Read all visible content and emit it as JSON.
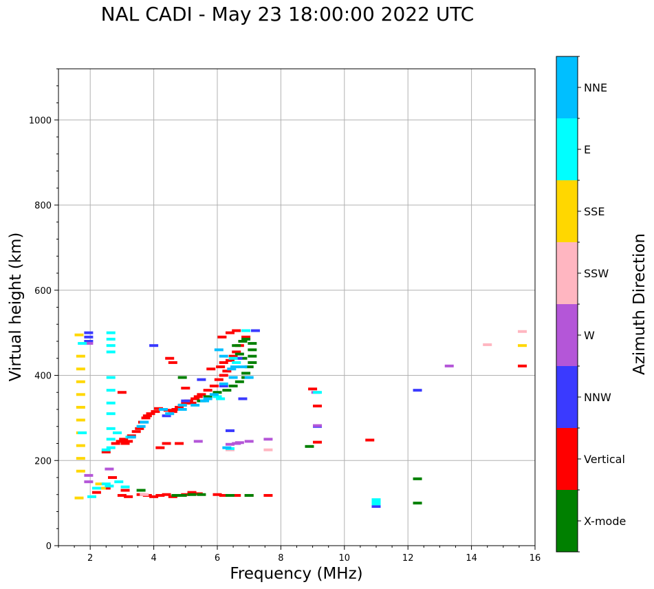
{
  "title": "NAL CADI - May 23 18:00:00 2022 UTC",
  "chart_data": {
    "type": "scatter",
    "xlabel": "Frequency (MHz)",
    "ylabel": "Virtual height (km)",
    "xlim": [
      1,
      16
    ],
    "ylim": [
      0,
      1120
    ],
    "xticks": [
      2,
      4,
      6,
      8,
      10,
      12,
      14,
      16
    ],
    "yticks": [
      0,
      200,
      400,
      600,
      800,
      1000
    ],
    "grid": true,
    "colorbar": {
      "label": "Azimuth Direction",
      "categories": [
        {
          "name": "X-mode",
          "color": "#008000"
        },
        {
          "name": "Vertical",
          "color": "#ff0000"
        },
        {
          "name": "NNW",
          "color": "#3a3aff"
        },
        {
          "name": "W",
          "color": "#b456d8"
        },
        {
          "name": "SSW",
          "color": "#ffb6c1"
        },
        {
          "name": "SSE",
          "color": "#ffd700"
        },
        {
          "name": "E",
          "color": "#00ffff"
        },
        {
          "name": "NNE",
          "color": "#00bfff"
        }
      ]
    },
    "series": [
      {
        "name": "Vertical",
        "points": [
          [
            2.2,
            125
          ],
          [
            2.5,
            220
          ],
          [
            2.8,
            240
          ],
          [
            2.95,
            245
          ],
          [
            3.05,
            250
          ],
          [
            3.1,
            240
          ],
          [
            3.2,
            245
          ],
          [
            3.3,
            258
          ],
          [
            3.45,
            268
          ],
          [
            3.55,
            275
          ],
          [
            3.65,
            290
          ],
          [
            3.75,
            300
          ],
          [
            3.8,
            305
          ],
          [
            3.9,
            310
          ],
          [
            4.05,
            315
          ],
          [
            4.15,
            322
          ],
          [
            4.3,
            320
          ],
          [
            4.45,
            318
          ],
          [
            4.6,
            315
          ],
          [
            4.7,
            320
          ],
          [
            4.8,
            325
          ],
          [
            4.9,
            330
          ],
          [
            5.0,
            335
          ],
          [
            5.1,
            340
          ],
          [
            5.2,
            335
          ],
          [
            5.3,
            345
          ],
          [
            5.4,
            350
          ],
          [
            5.5,
            355
          ],
          [
            5.7,
            365
          ],
          [
            5.9,
            375
          ],
          [
            6.05,
            390
          ],
          [
            6.2,
            400
          ],
          [
            6.3,
            410
          ],
          [
            6.4,
            435
          ],
          [
            6.5,
            445
          ],
          [
            6.6,
            455
          ],
          [
            6.7,
            470
          ],
          [
            6.8,
            480
          ],
          [
            6.9,
            490
          ],
          [
            6.15,
            490
          ],
          [
            6.4,
            500
          ],
          [
            6.6,
            505
          ],
          [
            6.2,
            430
          ],
          [
            6.1,
            420
          ],
          [
            5.8,
            415
          ],
          [
            4.6,
            430
          ],
          [
            4.5,
            440
          ],
          [
            5.0,
            370
          ],
          [
            3.0,
            360
          ],
          [
            4.2,
            230
          ],
          [
            4.4,
            240
          ],
          [
            4.8,
            240
          ],
          [
            9.0,
            368
          ],
          [
            9.15,
            328
          ],
          [
            9.15,
            243
          ],
          [
            10.8,
            248
          ],
          [
            15.6,
            422
          ],
          [
            3.0,
            118
          ],
          [
            3.2,
            115
          ],
          [
            3.6,
            120
          ],
          [
            3.8,
            118
          ],
          [
            4.0,
            115
          ],
          [
            4.2,
            118
          ],
          [
            4.4,
            120
          ],
          [
            4.6,
            115
          ],
          [
            4.8,
            118
          ],
          [
            5.0,
            120
          ],
          [
            5.2,
            125
          ],
          [
            5.4,
            122
          ],
          [
            6.0,
            120
          ],
          [
            6.2,
            118
          ],
          [
            6.6,
            118
          ],
          [
            7.0,
            118
          ],
          [
            7.6,
            118
          ],
          [
            2.7,
            160
          ],
          [
            2.5,
            135
          ],
          [
            3.1,
            130
          ]
        ]
      },
      {
        "name": "X-mode",
        "points": [
          [
            5.5,
            340
          ],
          [
            5.7,
            350
          ],
          [
            6.0,
            360
          ],
          [
            6.3,
            365
          ],
          [
            6.5,
            375
          ],
          [
            6.7,
            385
          ],
          [
            6.9,
            395
          ],
          [
            6.9,
            405
          ],
          [
            7.0,
            420
          ],
          [
            7.1,
            430
          ],
          [
            7.1,
            445
          ],
          [
            7.1,
            460
          ],
          [
            7.1,
            475
          ],
          [
            6.9,
            485
          ],
          [
            6.8,
            480
          ],
          [
            6.6,
            470
          ],
          [
            6.7,
            450
          ],
          [
            6.8,
            440
          ],
          [
            4.9,
            395
          ],
          [
            8.9,
            233
          ],
          [
            12.3,
            157
          ],
          [
            12.3,
            100
          ],
          [
            5.5,
            120
          ],
          [
            5.2,
            120
          ],
          [
            4.9,
            118
          ],
          [
            6.4,
            118
          ],
          [
            7.0,
            118
          ],
          [
            3.6,
            130
          ],
          [
            4.7,
            118
          ]
        ]
      },
      {
        "name": "NNW",
        "points": [
          [
            1.95,
            500
          ],
          [
            1.95,
            490
          ],
          [
            1.95,
            480
          ],
          [
            4.0,
            470
          ],
          [
            5.5,
            390
          ],
          [
            6.2,
            375
          ],
          [
            6.4,
            270
          ],
          [
            6.8,
            345
          ],
          [
            7.2,
            505
          ],
          [
            4.4,
            305
          ],
          [
            12.3,
            365
          ],
          [
            9.15,
            280
          ],
          [
            11.0,
            92
          ],
          [
            5.0,
            340
          ],
          [
            6.65,
            440
          ]
        ]
      },
      {
        "name": "W",
        "points": [
          [
            1.95,
            165
          ],
          [
            1.95,
            150
          ],
          [
            2.6,
            180
          ],
          [
            5.4,
            245
          ],
          [
            6.6,
            240
          ],
          [
            6.7,
            242
          ],
          [
            7.0,
            245
          ],
          [
            7.6,
            250
          ],
          [
            9.15,
            282
          ],
          [
            9.1,
            360
          ],
          [
            13.3,
            422
          ],
          [
            6.4,
            238
          ],
          [
            1.95,
            475
          ]
        ]
      },
      {
        "name": "SSW",
        "points": [
          [
            7.6,
            225
          ],
          [
            14.5,
            472
          ],
          [
            15.6,
            503
          ],
          [
            4.5,
            310
          ],
          [
            6.4,
            225
          ],
          [
            3.7,
            120
          ]
        ]
      },
      {
        "name": "SSE",
        "points": [
          [
            1.65,
            495
          ],
          [
            1.7,
            445
          ],
          [
            1.7,
            415
          ],
          [
            1.7,
            385
          ],
          [
            1.7,
            355
          ],
          [
            1.7,
            325
          ],
          [
            1.7,
            295
          ],
          [
            1.7,
            265
          ],
          [
            1.7,
            235
          ],
          [
            1.7,
            205
          ],
          [
            1.7,
            175
          ],
          [
            1.65,
            112
          ],
          [
            15.6,
            470
          ],
          [
            2.3,
            145
          ],
          [
            2.35,
            135
          ]
        ]
      },
      {
        "name": "E",
        "points": [
          [
            2.65,
            500
          ],
          [
            2.65,
            485
          ],
          [
            2.65,
            470
          ],
          [
            2.65,
            455
          ],
          [
            2.65,
            395
          ],
          [
            2.65,
            365
          ],
          [
            2.65,
            335
          ],
          [
            2.65,
            310
          ],
          [
            2.65,
            275
          ],
          [
            2.65,
            250
          ],
          [
            2.65,
            230
          ],
          [
            2.5,
            225
          ],
          [
            2.85,
            265
          ],
          [
            3.25,
            255
          ],
          [
            1.75,
            265
          ],
          [
            1.75,
            475
          ],
          [
            2.05,
            115
          ],
          [
            2.2,
            135
          ],
          [
            2.5,
            145
          ],
          [
            2.6,
            140
          ],
          [
            2.9,
            150
          ],
          [
            3.1,
            138
          ],
          [
            6.9,
            505
          ],
          [
            6.6,
            430
          ],
          [
            6.5,
            440
          ],
          [
            6.1,
            345
          ],
          [
            9.15,
            360
          ],
          [
            11.0,
            108
          ],
          [
            11.0,
            102
          ],
          [
            11.0,
            98
          ],
          [
            6.4,
            228
          ],
          [
            6.0,
            350
          ]
        ]
      },
      {
        "name": "NNE",
        "points": [
          [
            3.3,
            255
          ],
          [
            3.6,
            280
          ],
          [
            3.7,
            290
          ],
          [
            4.5,
            310
          ],
          [
            4.9,
            320
          ],
          [
            5.3,
            330
          ],
          [
            5.6,
            340
          ],
          [
            5.9,
            355
          ],
          [
            6.2,
            380
          ],
          [
            6.5,
            395
          ],
          [
            6.8,
            420
          ],
          [
            7.0,
            395
          ],
          [
            6.55,
            420
          ],
          [
            6.45,
            415
          ],
          [
            6.2,
            445
          ],
          [
            6.05,
            460
          ],
          [
            4.3,
            320
          ],
          [
            4.9,
            330
          ],
          [
            5.7,
            345
          ],
          [
            6.3,
            230
          ]
        ]
      }
    ]
  }
}
